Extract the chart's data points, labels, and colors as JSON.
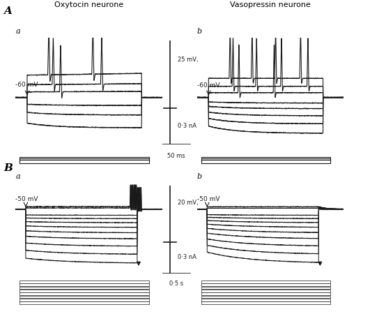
{
  "title_A_left": "Oxytocin neurone",
  "title_A_right": "Vasopressin neurone",
  "label_A": "A",
  "label_B": "B",
  "label_Aa": "a",
  "label_Ab": "b",
  "label_Ba": "a",
  "label_Bb": "b",
  "label_60mV_Aa": "-60 mV",
  "label_60mV_Ab": "-60 mV",
  "label_50mV_Ba": "-50 mV",
  "label_50mV_Bb": "-50 mV",
  "scalebar_A_mv": "25 mV,",
  "scalebar_A_na": "0·3 nA",
  "scalebar_A_time": "50 ms",
  "scalebar_B_mv": "20 mV,",
  "scalebar_B_na": "0·3 nA",
  "scalebar_B_time": "0·5 s",
  "bg_color": "#ffffff",
  "trace_color": "#1a1a1a"
}
